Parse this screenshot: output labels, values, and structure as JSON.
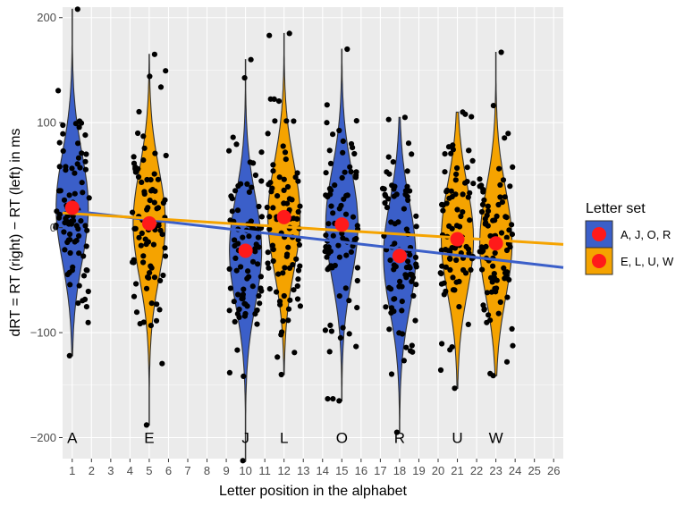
{
  "chart_data": {
    "type": "violin",
    "title": "",
    "xlabel": "Letter position in the alphabet",
    "ylabel": "dRT = RT (right) − RT (left) in ms",
    "xlim": [
      0.5,
      26.5
    ],
    "ylim": [
      -220,
      210
    ],
    "x_ticks": [
      1,
      2,
      3,
      4,
      5,
      6,
      7,
      8,
      9,
      10,
      11,
      12,
      13,
      14,
      15,
      16,
      17,
      18,
      19,
      20,
      21,
      22,
      23,
      24,
      25,
      26
    ],
    "y_ticks": [
      -200,
      -100,
      0,
      100,
      200
    ],
    "y_tick_labels": [
      "−200",
      "−100",
      "0",
      "100",
      "200"
    ],
    "legend": {
      "title": "Letter set",
      "position": "right",
      "entries": [
        {
          "label": "A, J, O, R",
          "color": "#3b5fc9"
        },
        {
          "label": "E, L, U, W",
          "color": "#f5a300"
        }
      ]
    },
    "colors": {
      "set1": "#3b5fc9",
      "set2": "#f5a300",
      "mean_dot": "#ff1a1a",
      "points": "#000000",
      "panel": "#ebebeb",
      "grid": "#ffffff"
    },
    "groups": [
      {
        "letter": "A",
        "position": 1,
        "set": "A, J, O, R",
        "mean": 19,
        "min": -122,
        "max": 208
      },
      {
        "letter": "E",
        "position": 5,
        "set": "E, L, U, W",
        "mean": 4,
        "min": -188,
        "max": 165
      },
      {
        "letter": "J",
        "position": 10,
        "set": "A, J, O, R",
        "mean": -22,
        "min": -222,
        "max": 160
      },
      {
        "letter": "L",
        "position": 12,
        "set": "E, L, U, W",
        "mean": 10,
        "min": -140,
        "max": 185
      },
      {
        "letter": "O",
        "position": 15,
        "set": "A, J, O, R",
        "mean": 3,
        "min": -165,
        "max": 170
      },
      {
        "letter": "R",
        "position": 18,
        "set": "A, J, O, R",
        "mean": -27,
        "min": -195,
        "max": 105
      },
      {
        "letter": "U",
        "position": 21,
        "set": "E, L, U, W",
        "mean": -11,
        "min": -153,
        "max": 110
      },
      {
        "letter": "W",
        "position": 23,
        "set": "E, L, U, W",
        "mean": -15,
        "min": -141,
        "max": 167
      }
    ],
    "regression_lines": [
      {
        "set": "A, J, O, R",
        "color": "#3b5fc9",
        "x": [
          0.5,
          26.5
        ],
        "y": [
          17,
          -38
        ]
      },
      {
        "set": "E, L, U, W",
        "color": "#f5a300",
        "x": [
          0.5,
          26.5
        ],
        "y": [
          14,
          -16
        ]
      }
    ]
  }
}
